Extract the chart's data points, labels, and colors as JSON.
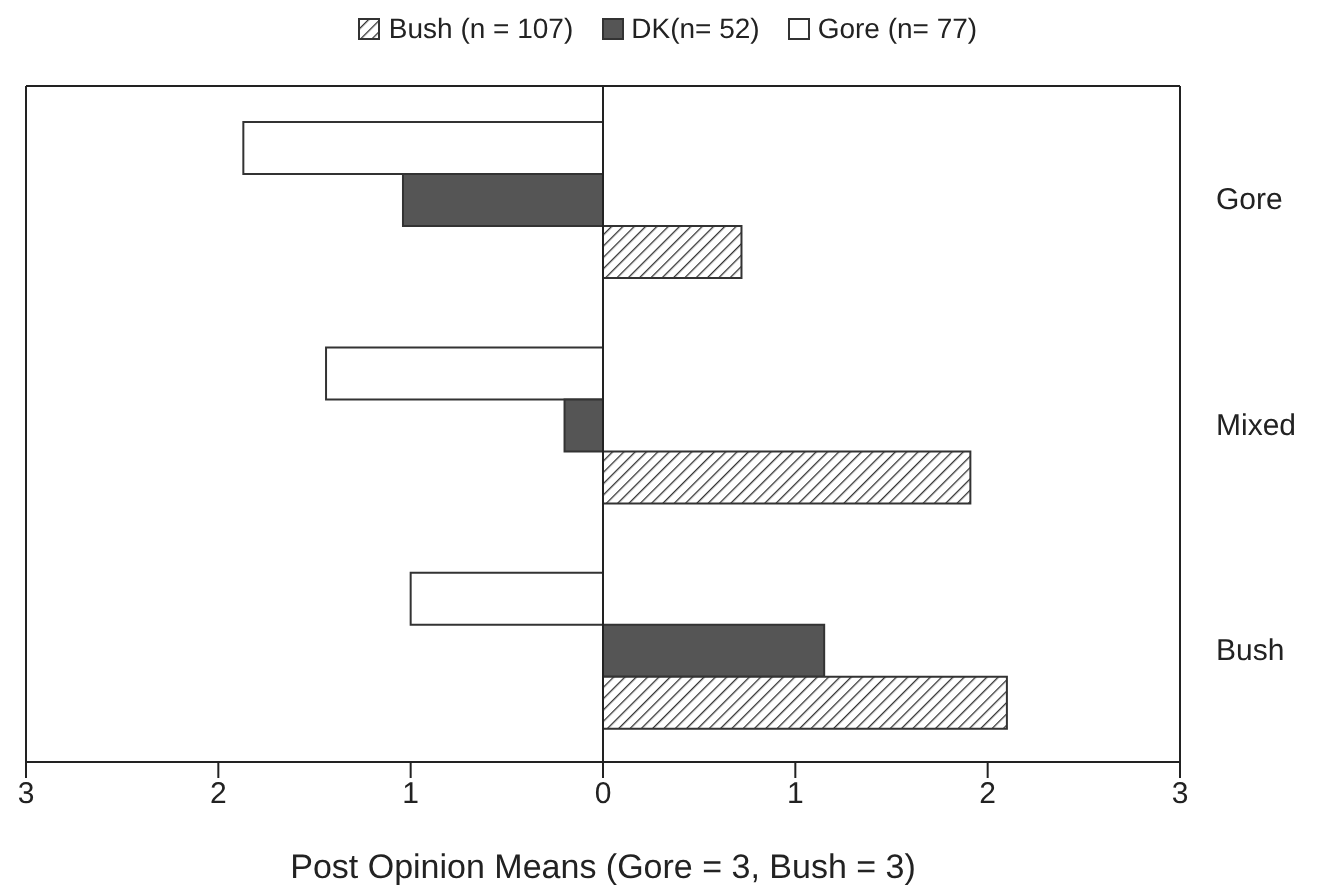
{
  "chart_data": {
    "type": "bar",
    "orientation": "horizontal",
    "xlabel": "Post Opinion Means (Gore =  3, Bush = 3)",
    "categories": [
      "Gore",
      "Mixed",
      "Bush"
    ],
    "series": [
      {
        "name": "Bush (n = 107)",
        "color": "#333333",
        "values": [
          0.72,
          1.91,
          2.1
        ]
      },
      {
        "name": "DK(n= 52)",
        "color": "#555555",
        "values": [
          -1.04,
          -0.2,
          1.15
        ]
      },
      {
        "name": "Gore (n= 77)",
        "color": "#ffffff",
        "values": [
          -1.87,
          -1.44,
          -1.0
        ]
      }
    ],
    "xlim": [
      -3,
      3
    ],
    "xticks": [
      {
        "value": -3,
        "label": "3"
      },
      {
        "value": -2,
        "label": "2"
      },
      {
        "value": -1,
        "label": "1"
      },
      0,
      1,
      2,
      3
    ],
    "ref_lines": [
      {
        "axis": "x",
        "value": 0
      }
    ],
    "legend": "top"
  }
}
